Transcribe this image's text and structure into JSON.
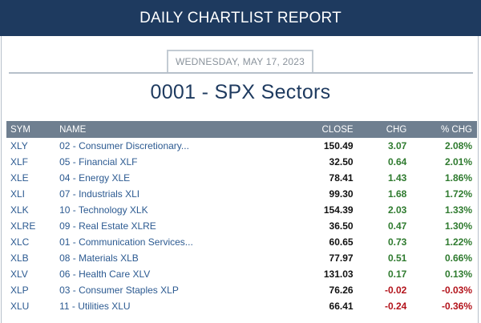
{
  "header": {
    "title": "DAILY CHARTLIST REPORT"
  },
  "report": {
    "date": "WEDNESDAY, MAY 17, 2023",
    "list_title": "0001 - SPX Sectors"
  },
  "table": {
    "columns": [
      "SYM",
      "NAME",
      "CLOSE",
      "CHG",
      "% CHG"
    ],
    "rows": [
      {
        "sym": "XLY",
        "name": "02 - Consumer Discretionary...",
        "close": "150.49",
        "chg": "3.07",
        "pct": "2.08%",
        "dir": "pos"
      },
      {
        "sym": "XLF",
        "name": "05 - Financial XLF",
        "close": "32.50",
        "chg": "0.64",
        "pct": "2.01%",
        "dir": "pos"
      },
      {
        "sym": "XLE",
        "name": "04 - Energy XLE",
        "close": "78.41",
        "chg": "1.43",
        "pct": "1.86%",
        "dir": "pos"
      },
      {
        "sym": "XLI",
        "name": "07 - Industrials XLI",
        "close": "99.30",
        "chg": "1.68",
        "pct": "1.72%",
        "dir": "pos"
      },
      {
        "sym": "XLK",
        "name": "10 - Technology XLK",
        "close": "154.39",
        "chg": "2.03",
        "pct": "1.33%",
        "dir": "pos"
      },
      {
        "sym": "XLRE",
        "name": "09 - Real Estate XLRE",
        "close": "36.50",
        "chg": "0.47",
        "pct": "1.30%",
        "dir": "pos"
      },
      {
        "sym": "XLC",
        "name": "01 - Communication Services...",
        "close": "60.65",
        "chg": "0.73",
        "pct": "1.22%",
        "dir": "pos"
      },
      {
        "sym": "XLB",
        "name": "08 - Materials XLB",
        "close": "77.97",
        "chg": "0.51",
        "pct": "0.66%",
        "dir": "pos"
      },
      {
        "sym": "XLV",
        "name": "06 - Health Care XLV",
        "close": "131.03",
        "chg": "0.17",
        "pct": "0.13%",
        "dir": "pos"
      },
      {
        "sym": "XLP",
        "name": "03 - Consumer Staples XLP",
        "close": "76.26",
        "chg": "-0.02",
        "pct": "-0.03%",
        "dir": "neg"
      },
      {
        "sym": "XLU",
        "name": "11 - Utilities XLU",
        "close": "66.41",
        "chg": "-0.24",
        "pct": "-0.36%",
        "dir": "neg"
      }
    ]
  },
  "colors": {
    "header_bg": "#1e3a5f",
    "table_header_bg": "#6f7f90",
    "link": "#2c5a91",
    "positive": "#2e7a2e",
    "negative": "#b3131b"
  }
}
